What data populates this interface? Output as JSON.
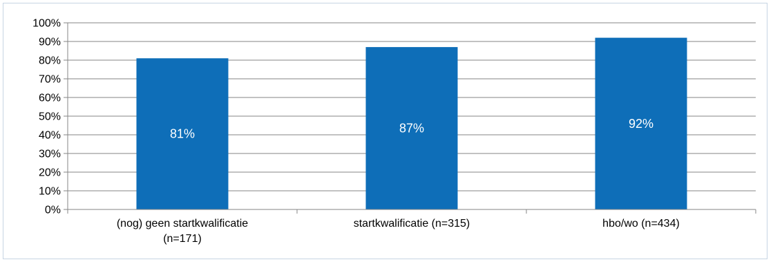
{
  "chart_data": {
    "type": "bar",
    "title": "",
    "xlabel": "",
    "ylabel": "",
    "categories": [
      "(nog) geen startkwalificatie\n(n=171)",
      "startkwalificatie (n=315)",
      "hbo/wo (n=434)"
    ],
    "values": [
      81,
      87,
      92
    ],
    "data_labels": [
      "81%",
      "87%",
      "92%"
    ],
    "ylim": [
      0,
      100
    ],
    "yticks": [
      0,
      10,
      20,
      30,
      40,
      50,
      60,
      70,
      80,
      90,
      100
    ],
    "ytick_labels": [
      "0%",
      "10%",
      "20%",
      "30%",
      "40%",
      "50%",
      "60%",
      "70%",
      "80%",
      "90%",
      "100%"
    ],
    "grid": true,
    "legend": "none",
    "colors": {
      "bar": "#0e6eb8",
      "data_label": "#ffffff",
      "grid": "#868686",
      "axis": "#868686",
      "frame": "#c6d4e3"
    }
  }
}
